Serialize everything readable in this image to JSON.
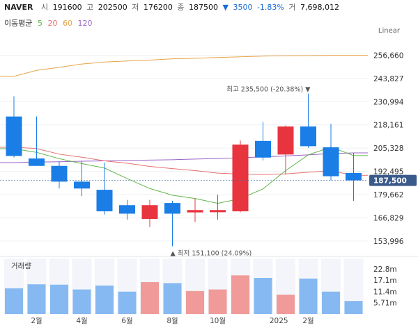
{
  "header": {
    "name": "NAVER",
    "open_label": "시",
    "open": "191600",
    "high_label": "고",
    "high": "202500",
    "low_label": "저",
    "low": "176200",
    "close_label": "종",
    "close": "187500",
    "change_arrow": "▼",
    "change": "3500",
    "change_pct": "-1.83%",
    "volume_label": "거",
    "volume": "7,698,012"
  },
  "moving_average": {
    "label": "이동평균",
    "periods": [
      {
        "text": "5",
        "color": "#62b44b"
      },
      {
        "text": "20",
        "color": "#e5706d"
      },
      {
        "text": "60",
        "color": "#e8a24a"
      },
      {
        "text": "120",
        "color": "#9b63c9"
      }
    ]
  },
  "scale_mode": "Linear",
  "chart_data": {
    "type": "candlestick",
    "colors": {
      "up": "#e8343f",
      "down": "#1a7ee6",
      "volume_up": "#f09a9a",
      "volume_down": "#86b9f2"
    },
    "price_axis": {
      "ticks": [
        256660,
        243827,
        230994,
        218161,
        205328,
        192495,
        179662,
        166829,
        153996
      ],
      "range": [
        147000,
        268000
      ]
    },
    "current_price": {
      "value": 187500,
      "label": "187,500"
    },
    "annotations": {
      "high": {
        "index": 13,
        "value": 235500,
        "label": "최고",
        "text": "235,500 (-20.38%)",
        "arrow": "▼"
      },
      "low": {
        "index": 7,
        "value": 151100,
        "label": "최저",
        "text": "151,100 (24.09%)",
        "arrow": "▲"
      }
    },
    "candles": [
      {
        "o": 222800,
        "h": 234000,
        "l": 200200,
        "c": 201000
      },
      {
        "o": 199600,
        "h": 222800,
        "l": 195500,
        "c": 195500
      },
      {
        "o": 195500,
        "h": 198000,
        "l": 183000,
        "c": 186800
      },
      {
        "o": 186800,
        "h": 198000,
        "l": 178800,
        "c": 183000
      },
      {
        "o": 182300,
        "h": 197300,
        "l": 168600,
        "c": 170400
      },
      {
        "o": 173800,
        "h": 176700,
        "l": 165800,
        "c": 169100
      },
      {
        "o": 166200,
        "h": 176700,
        "l": 161700,
        "c": 173800
      },
      {
        "o": 175000,
        "h": 176200,
        "l": 151100,
        "c": 169100
      },
      {
        "o": 169800,
        "h": 177500,
        "l": 164500,
        "c": 171100
      },
      {
        "o": 169900,
        "h": 179600,
        "l": 165800,
        "c": 171100
      },
      {
        "o": 170400,
        "h": 209500,
        "l": 169900,
        "c": 207300
      },
      {
        "o": 209300,
        "h": 219800,
        "l": 198500,
        "c": 200100
      },
      {
        "o": 201800,
        "h": 217800,
        "l": 190700,
        "c": 217300
      },
      {
        "o": 217300,
        "h": 235500,
        "l": 205500,
        "c": 206400
      },
      {
        "o": 205800,
        "h": 218800,
        "l": 187500,
        "c": 189800
      },
      {
        "o": 191600,
        "h": 202500,
        "l": 176200,
        "c": 187500
      }
    ],
    "ma5": [
      205000,
      203000,
      199500,
      196800,
      194300,
      188500,
      183000,
      179300,
      177500,
      174800,
      177400,
      182800,
      192900,
      201600,
      205900,
      201200
    ],
    "ma20": [
      205800,
      205100,
      202000,
      200300,
      198300,
      197000,
      195200,
      194000,
      192900,
      191500,
      191000,
      190800,
      191100,
      192000,
      192800,
      190300
    ],
    "ma60": [
      245000,
      248300,
      250000,
      251800,
      252900,
      253500,
      254000,
      254700,
      255000,
      255400,
      255800,
      256200,
      256400,
      256500,
      256600,
      256600
    ],
    "ma120": [
      197300,
      197600,
      197800,
      198100,
      198300,
      198500,
      198700,
      198900,
      199300,
      199600,
      200000,
      200500,
      201000,
      201600,
      202300,
      202700
    ],
    "volume_axis": {
      "ticks": [
        "22.8m",
        "17.1m",
        "11.4m",
        "5.71m"
      ],
      "tick_values": [
        22.8,
        17.1,
        11.4,
        5.71
      ],
      "max": 28
    },
    "volume": [
      13,
      15,
      14.8,
      12.4,
      14.4,
      11.3,
      16.1,
      15.6,
      11.6,
      12.4,
      19.5,
      18.2,
      9.8,
      17.9,
      11.3,
      6.6
    ],
    "x_labels": [
      {
        "index": 1,
        "text": "2월"
      },
      {
        "index": 3,
        "text": "4월"
      },
      {
        "index": 5,
        "text": "6월"
      },
      {
        "index": 7,
        "text": "8월"
      },
      {
        "index": 9,
        "text": "10월"
      },
      {
        "index": 11.7,
        "text": "2025"
      },
      {
        "index": 13,
        "text": "2월"
      }
    ],
    "volume_label": "거래량"
  }
}
